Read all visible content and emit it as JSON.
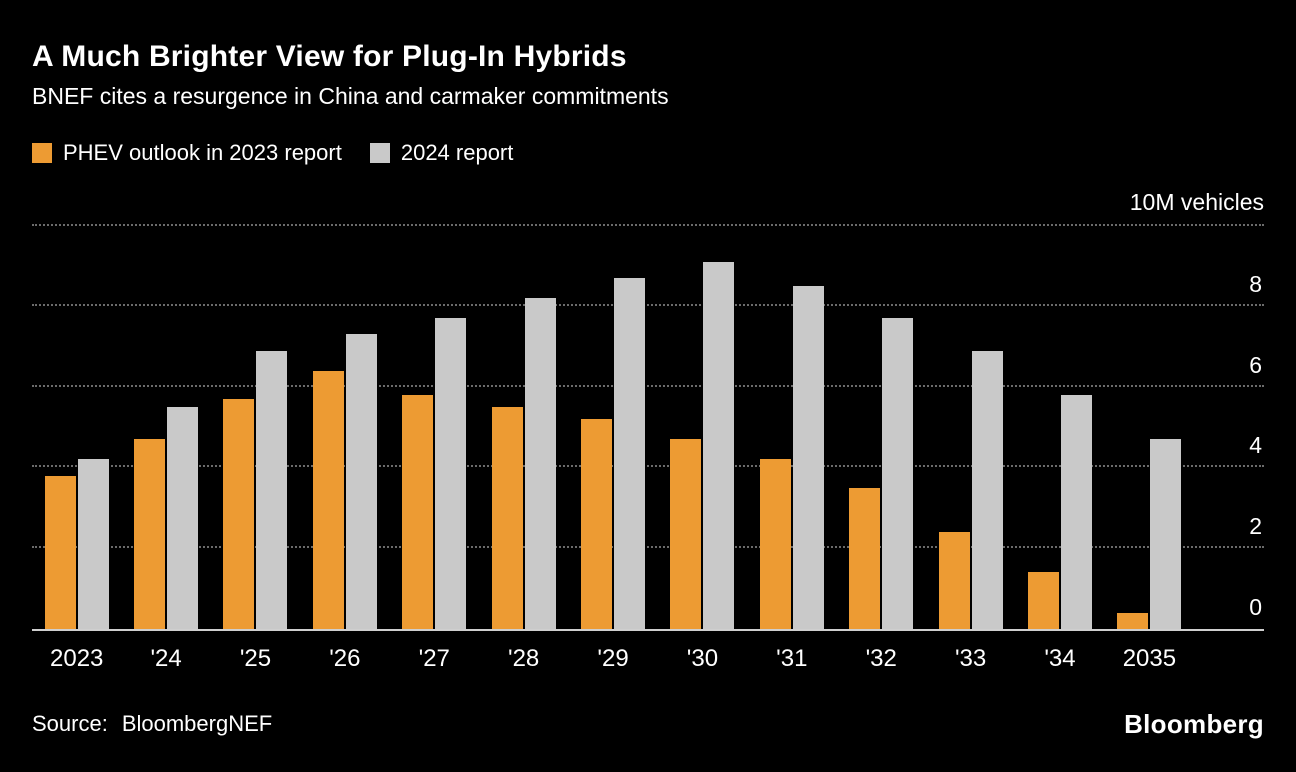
{
  "chart_data": {
    "type": "bar",
    "title": "A Much Brighter View for Plug-In Hybrids",
    "subtitle": "BNEF cites a resurgence in China and carmaker commitments",
    "unit_label": "10M vehicles",
    "categories": [
      "2023",
      "'24",
      "'25",
      "'26",
      "'27",
      "'28",
      "'29",
      "'30",
      "'31",
      "'32",
      "'33",
      "'34",
      "2035"
    ],
    "series": [
      {
        "name": "PHEV outlook in 2023 report",
        "color": "#ED9B33",
        "values": [
          3.8,
          4.7,
          5.7,
          6.4,
          5.8,
          5.5,
          5.2,
          4.7,
          4.2,
          3.5,
          2.4,
          1.4,
          0.4
        ]
      },
      {
        "name": "2024 report",
        "color": "#C9C9C9",
        "values": [
          4.2,
          5.5,
          6.9,
          7.3,
          7.7,
          8.2,
          8.7,
          9.1,
          8.5,
          7.7,
          6.9,
          5.8,
          4.7
        ]
      }
    ],
    "ylim": [
      0,
      10
    ],
    "y_ticks": [
      0,
      2,
      4,
      6,
      8
    ],
    "grid": "dotted horizontal",
    "legend_position": "top-left"
  },
  "footer": {
    "source_label": "Source:",
    "source_value": "BloombergNEF",
    "brand": "Bloomberg"
  }
}
